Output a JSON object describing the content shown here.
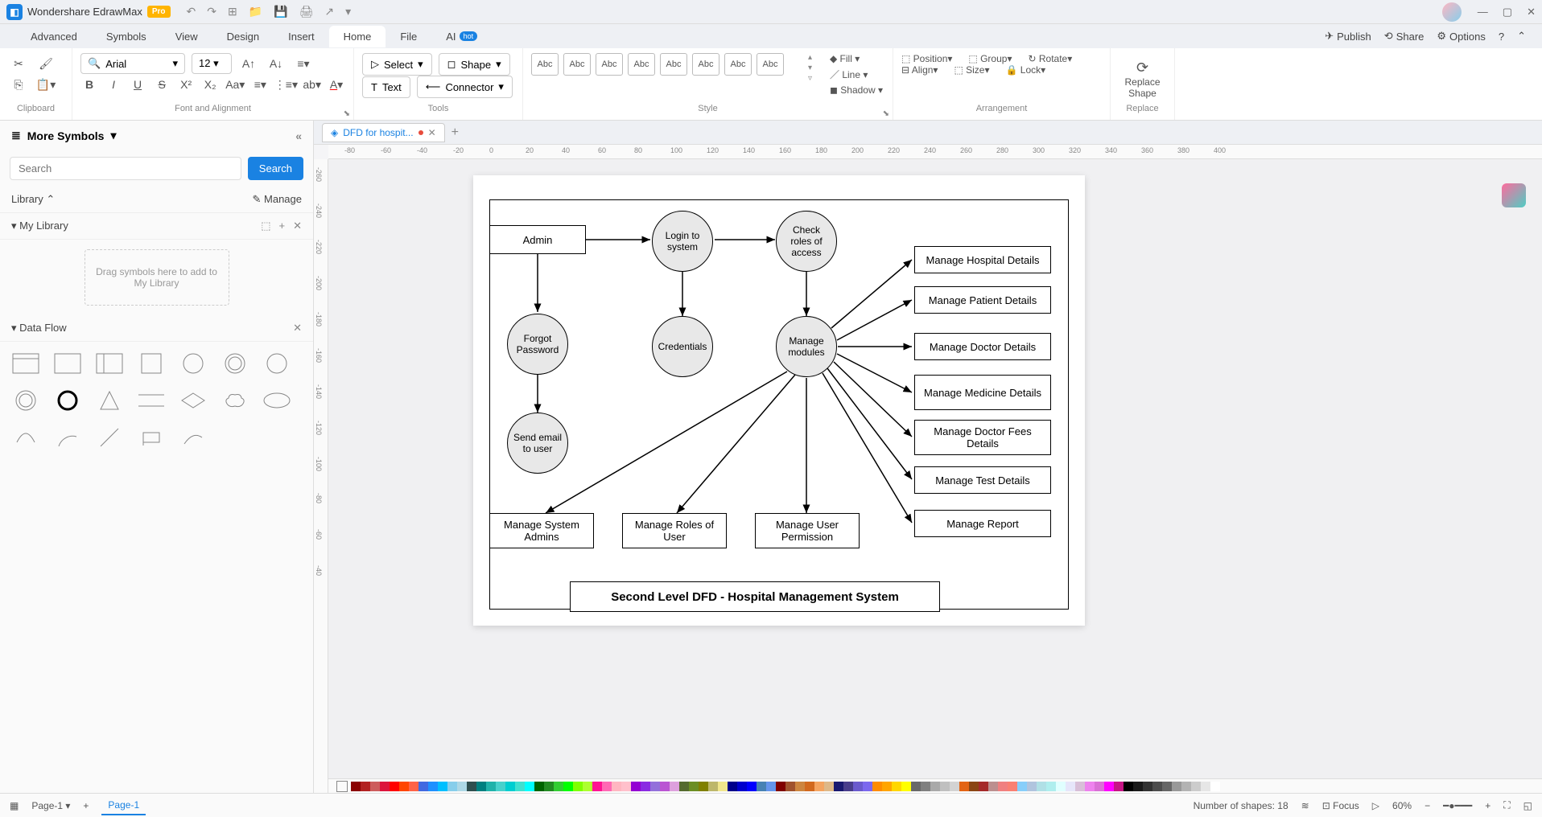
{
  "app": {
    "title": "Wondershare EdrawMax",
    "pro": "Pro"
  },
  "menus": [
    "File",
    "Home",
    "Insert",
    "Design",
    "View",
    "Symbols",
    "Advanced"
  ],
  "menu_active": 1,
  "ai_label": "AI",
  "hot_label": "hot",
  "right_actions": {
    "publish": "Publish",
    "share": "Share",
    "options": "Options"
  },
  "ribbon": {
    "font_name": "Arial",
    "font_size": "12",
    "select_label": "Select",
    "shape_label": "Shape",
    "text_label": "Text",
    "connector_label": "Connector",
    "style_label": "Abc",
    "fill_label": "Fill",
    "line_label": "Line",
    "shadow_label": "Shadow",
    "position_label": "Position",
    "align_label": "Align",
    "group_label": "Group",
    "size_label": "Size",
    "rotate_label": "Rotate",
    "lock_label": "Lock",
    "replace_shape": "Replace Shape",
    "groups": {
      "clipboard": "Clipboard",
      "font": "Font and Alignment",
      "tools": "Tools",
      "style": "Style",
      "arrangement": "Arrangement",
      "replace": "Replace"
    }
  },
  "sidebar": {
    "more_symbols": "More Symbols",
    "search_placeholder": "Search",
    "search_btn": "Search",
    "library_label": "Library",
    "manage_label": "Manage",
    "mylib_label": "My Library",
    "mylib_drop": "Drag symbols here to add to My Library",
    "dataflow_label": "Data Flow"
  },
  "doc_tab": "DFD for hospit...",
  "ruler_h": [
    -80,
    -60,
    -40,
    -20,
    0,
    20,
    40,
    60,
    80,
    100,
    120,
    140,
    160,
    180,
    200,
    220,
    240,
    260,
    280,
    300,
    320,
    340,
    360,
    380,
    400
  ],
  "ruler_v": [
    -260,
    -240,
    -220,
    -200,
    -180,
    -160,
    -140,
    -120,
    -100,
    -80,
    -60,
    -40
  ],
  "diagram": {
    "title": "Second Level DFD - Hospital Management System",
    "entities": {
      "admin": "Admin",
      "hosp": "Manage Hospital Details",
      "patient": "Manage Patient Details",
      "doctor": "Manage Doctor Details",
      "medicine": "Manage Medicine Details",
      "fees": "Manage Doctor Fees Details",
      "test": "Manage Test Details",
      "report": "Manage Report",
      "sysadmin": "Manage System Admins",
      "roles": "Manage Roles of User",
      "perm": "Manage User Permission"
    },
    "processes": {
      "login": "Login to system",
      "check": "Check roles of access",
      "forgot": "Forgot Password",
      "cred": "Credentials",
      "modules": "Manage modules",
      "email": "Send email to user"
    }
  },
  "palette_colors": [
    "#8b0000",
    "#b22222",
    "#cd5c5c",
    "#dc143c",
    "#ff0000",
    "#ff4500",
    "#ff6347",
    "#4169e1",
    "#1e90ff",
    "#00bfff",
    "#87ceeb",
    "#add8e6",
    "#2f4f4f",
    "#008080",
    "#20b2aa",
    "#48d1cc",
    "#00ced1",
    "#40e0d0",
    "#00ffff",
    "#006400",
    "#228b22",
    "#32cd32",
    "#00ff00",
    "#7fff00",
    "#adff2f",
    "#ff1493",
    "#ff69b4",
    "#ffb6c1",
    "#ffc0cb",
    "#9400d3",
    "#8a2be2",
    "#9370db",
    "#ba55d3",
    "#dda0dd",
    "#556b2f",
    "#6b8e23",
    "#808000",
    "#bdb76b",
    "#f0e68c",
    "#00008b",
    "#0000cd",
    "#0000ff",
    "#4682b4",
    "#6495ed",
    "#800000",
    "#a0522d",
    "#cd853f",
    "#d2691e",
    "#f4a460",
    "#deb887",
    "#191970",
    "#483d8b",
    "#6a5acd",
    "#7b68ee",
    "#ff8c00",
    "#ffa500",
    "#ffd700",
    "#ffff00",
    "#696969",
    "#808080",
    "#a9a9a9",
    "#c0c0c0",
    "#d3d3d3",
    "#e36414",
    "#8b4513",
    "#a52a2a",
    "#bc8f8f",
    "#f08080",
    "#fa8072",
    "#87cefa",
    "#b0c4de",
    "#b0e0e6",
    "#afeeee",
    "#e0ffff",
    "#e6e6fa",
    "#d8bfd8",
    "#ee82ee",
    "#da70d6",
    "#ff00ff",
    "#c71585",
    "#000000",
    "#1a1a1a",
    "#333333",
    "#4d4d4d",
    "#666666",
    "#999999",
    "#b3b3b3",
    "#cccccc",
    "#e6e6e6",
    "#ffffff"
  ],
  "statusbar": {
    "page_name": "Page-1",
    "page_tab": "Page-1",
    "shapes": "Number of shapes: 18",
    "focus": "Focus",
    "zoom": "60%"
  }
}
